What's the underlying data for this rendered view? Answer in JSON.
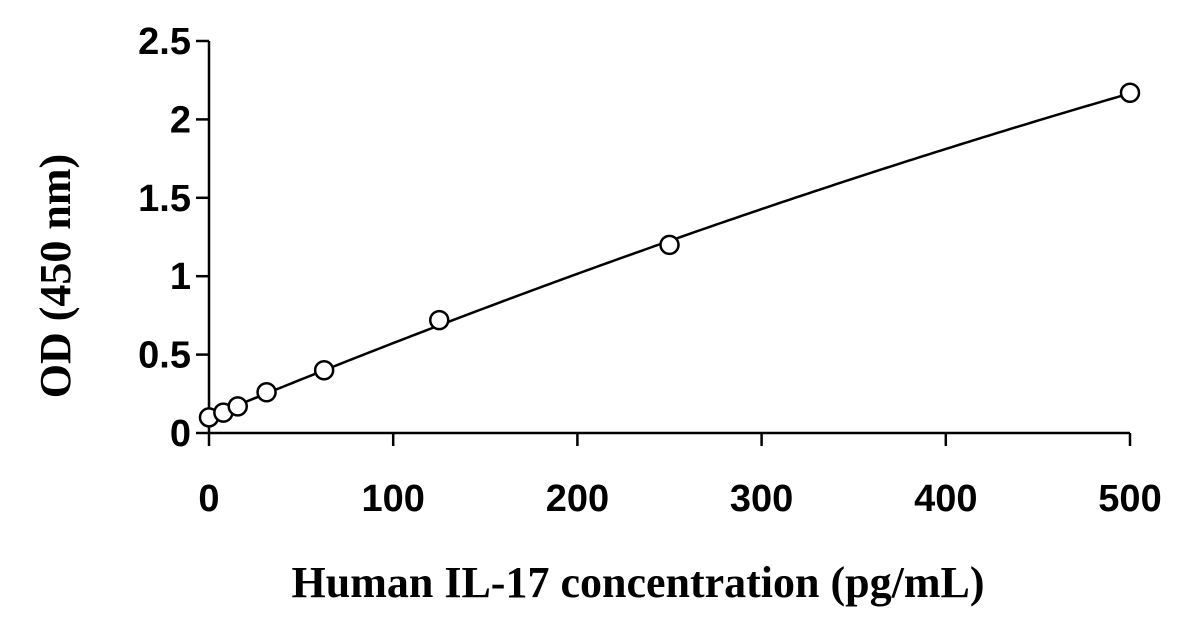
{
  "chart_data": {
    "type": "scatter",
    "xlabel": "Human IL-17 concentration (pg/mL)",
    "ylabel": "OD (450 nm)",
    "xlim": [
      0,
      500
    ],
    "ylim": [
      0,
      2.5
    ],
    "xticks": [
      0,
      100,
      200,
      300,
      400,
      500
    ],
    "xtick_labels": [
      "0",
      "100",
      "200",
      "300",
      "400",
      "500"
    ],
    "yticks": [
      0,
      0.5,
      1,
      1.5,
      2,
      2.5
    ],
    "ytick_labels": [
      "0",
      "0.5",
      "1",
      "1.5",
      "2",
      "2.5"
    ],
    "grid": false,
    "legend": "none",
    "series": [
      {
        "name": "",
        "x": [
          0,
          7.8,
          15.6,
          31.25,
          62.5,
          125,
          250,
          500
        ],
        "y": [
          0.1,
          0.13,
          0.17,
          0.26,
          0.4,
          0.72,
          1.2,
          2.17
        ],
        "marker": "open-circle",
        "fit_line": true
      }
    ],
    "colors": {
      "marker_stroke": "#000000",
      "marker_fill": "#ffffff",
      "line": "#000000",
      "axis": "#000000"
    }
  }
}
